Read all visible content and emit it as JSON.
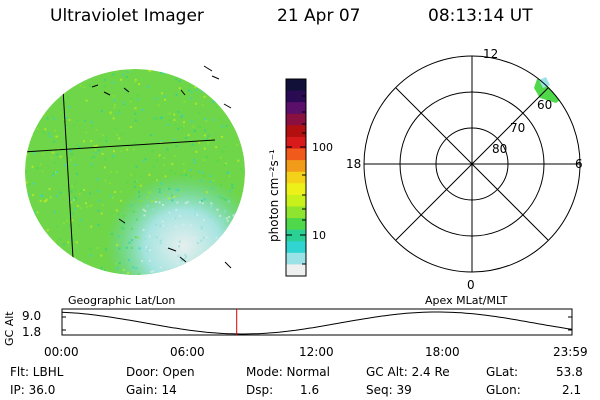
{
  "header": {
    "title": "Ultraviolet Imager",
    "date": "21 Apr 07",
    "time": "08:13:14 UT"
  },
  "colorbar": {
    "label": "photon cm⁻²s⁻¹",
    "ticks": [
      "100",
      "10"
    ],
    "colors": [
      "#101038",
      "#2a0a52",
      "#5a0f6a",
      "#8a1040",
      "#b21010",
      "#d81a1a",
      "#f05a1a",
      "#f29a1a",
      "#f4d21a",
      "#eef01a",
      "#c8f01a",
      "#8ee42e",
      "#4ed84a",
      "#2ad094",
      "#30d4d0",
      "#9ae2e6",
      "#eef0f0"
    ]
  },
  "polar": {
    "mlt_labels": [
      "12",
      "18",
      "6",
      "0"
    ],
    "lat_labels": [
      "60",
      "70",
      "80"
    ],
    "patch_color": "#4ed84a"
  },
  "geo_map": {
    "main_color": "#6fd64a",
    "edge_color": "#5fd6c8"
  },
  "timeline": {
    "left_label": "Geographic Lat/Lon",
    "right_label": "Apex  MLat/MLT",
    "ylabel": "GC Alt",
    "y_ticks": [
      "9.0",
      "1.8"
    ],
    "x_ticks": [
      "00:00",
      "06:00",
      "12:00",
      "18:00",
      "23:59"
    ],
    "current_time": "08:13:14",
    "marker_color": "#dd0000"
  },
  "info": {
    "row1": [
      {
        "label": "Flt: LBHL"
      },
      {
        "label": "Door: Open"
      },
      {
        "label": "Mode: Normal"
      },
      {
        "label": "GC Alt: 2.4 Re"
      },
      {
        "label": "GLat:",
        "value": "53.8"
      }
    ],
    "row2": [
      {
        "label": "IP: 36.0"
      },
      {
        "label": "Gain: 14"
      },
      {
        "label": "Dsp:",
        "value": "1.6"
      },
      {
        "label": "Seq: 39"
      },
      {
        "label": "GLon:",
        "value": "2.1"
      }
    ]
  }
}
